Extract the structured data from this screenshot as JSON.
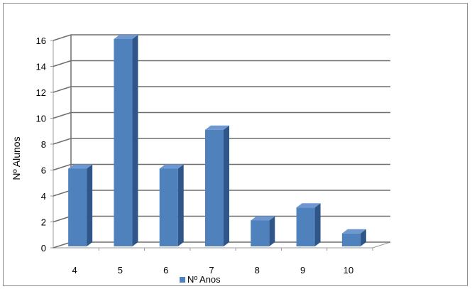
{
  "chart_data": {
    "type": "bar",
    "style": "3d-column",
    "categories": [
      "4",
      "5",
      "6",
      "7",
      "8",
      "9",
      "10"
    ],
    "series": [
      {
        "name": "Nº Anos",
        "values": [
          6,
          16,
          6,
          9,
          2,
          3,
          1
        ]
      }
    ],
    "title": "",
    "xlabel": "",
    "ylabel": "Nº Alunos",
    "ylim": [
      0,
      16
    ],
    "yticks": [
      "0",
      "2",
      "4",
      "6",
      "8",
      "10",
      "12",
      "14",
      "16"
    ],
    "grid": true,
    "legend_position": "bottom",
    "colors": {
      "bar_front": "#4F81BD",
      "bar_side": "#2E5689",
      "bar_top": "#6E98CF",
      "grid": "#6e6e6e"
    }
  }
}
